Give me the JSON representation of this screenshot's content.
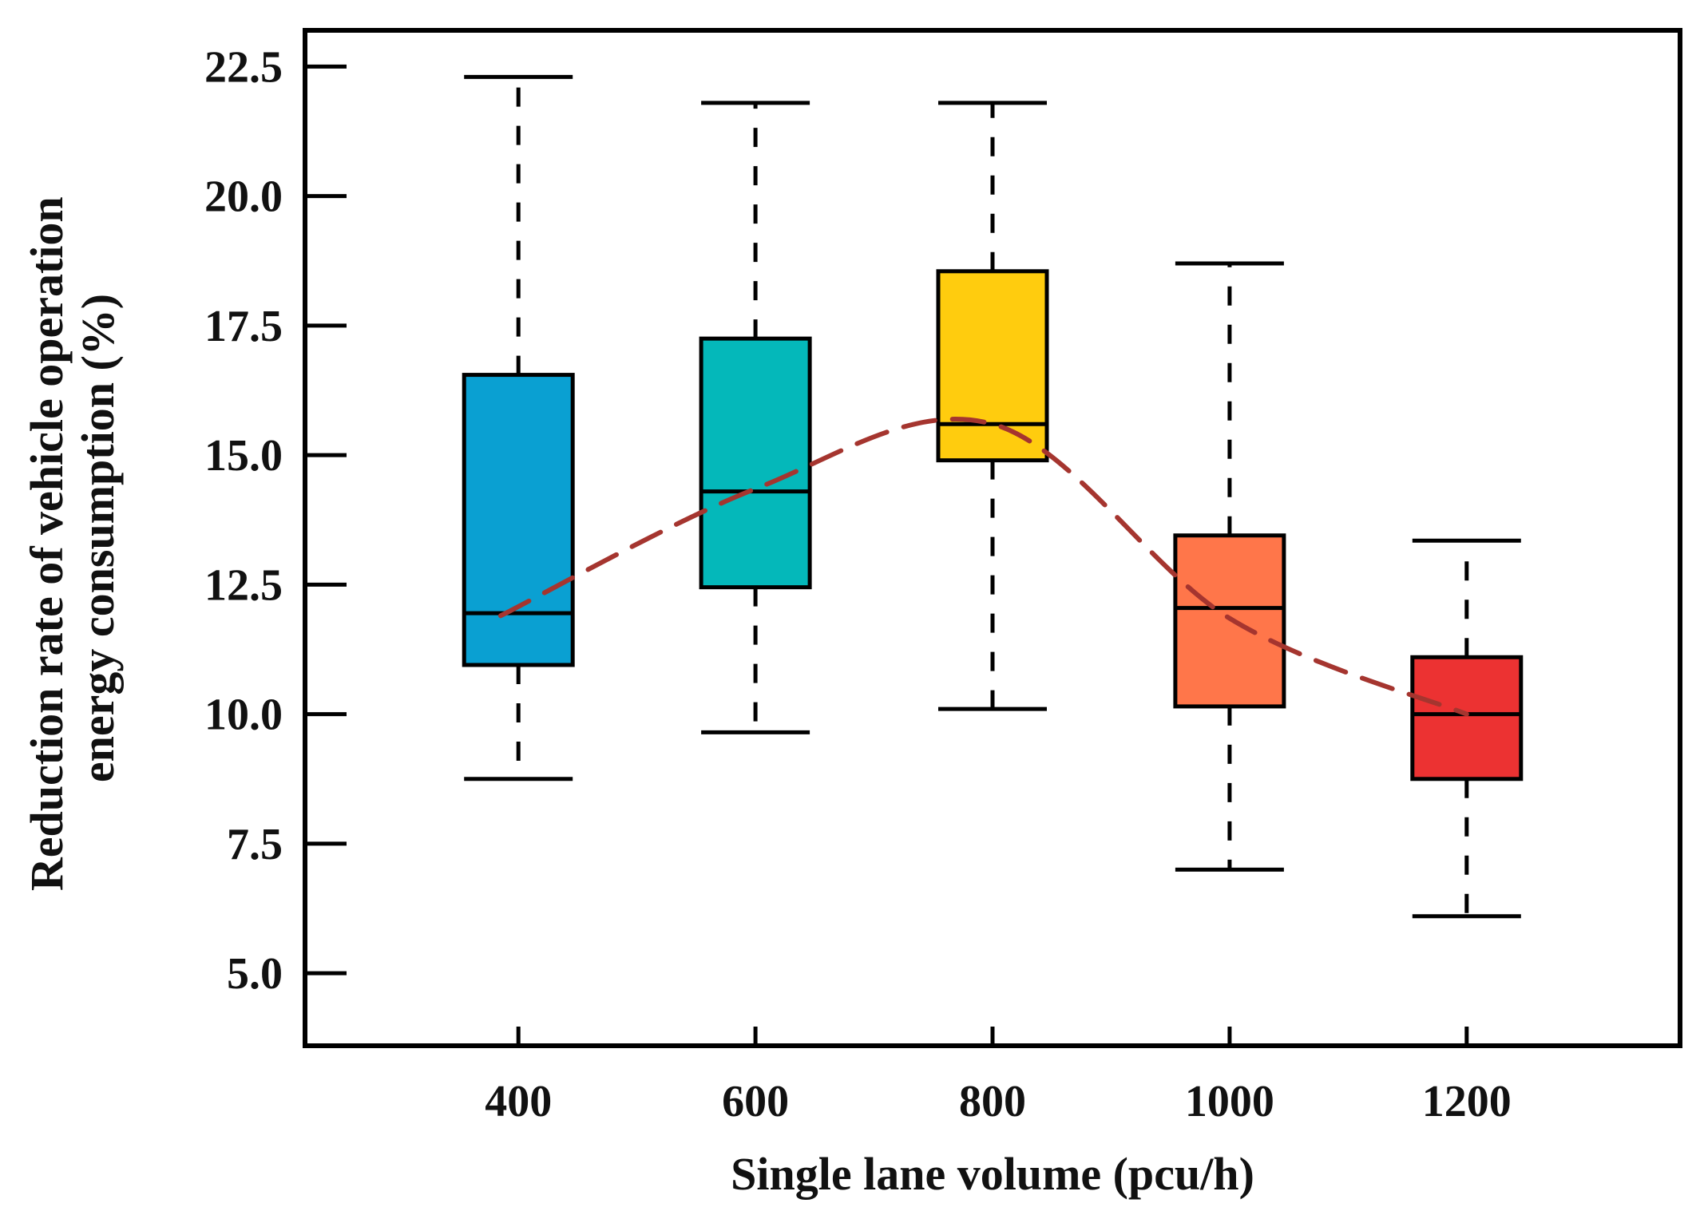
{
  "chart_data": {
    "type": "box",
    "title": "",
    "xlabel": "Single lane volume (pcu/h)",
    "ylabel_lines": [
      "Reduction rate of vehicle operation",
      "energy consumption (%)"
    ],
    "x_range": [
      220,
      1380
    ],
    "ylim": [
      3.6,
      23.2
    ],
    "yticks": [
      5.0,
      7.5,
      10.0,
      12.5,
      15.0,
      17.5,
      20.0,
      22.5
    ],
    "ytick_labels": [
      "5.0",
      "7.5",
      "10.0",
      "12.5",
      "15.0",
      "17.5",
      "20.0",
      "22.5"
    ],
    "xticks": [
      400,
      600,
      800,
      1000,
      1200
    ],
    "xtick_labels": [
      "400",
      "600",
      "800",
      "1000",
      "1200"
    ],
    "boxes": [
      {
        "x": 400,
        "min": 8.75,
        "q1": 10.95,
        "median": 11.95,
        "q3": 16.55,
        "max": 22.3,
        "color": "#0AA0D2"
      },
      {
        "x": 600,
        "min": 9.65,
        "q1": 12.45,
        "median": 14.3,
        "q3": 17.25,
        "max": 21.8,
        "color": "#04B8BA"
      },
      {
        "x": 800,
        "min": 10.1,
        "q1": 14.9,
        "median": 15.6,
        "q3": 18.55,
        "max": 21.8,
        "color": "#FFCC0E"
      },
      {
        "x": 1000,
        "min": 7.0,
        "q1": 10.15,
        "median": 12.05,
        "q3": 13.45,
        "max": 18.7,
        "color": "#FF764A"
      },
      {
        "x": 1200,
        "min": 6.1,
        "q1": 8.75,
        "median": 10.0,
        "q3": 11.1,
        "max": 13.35,
        "color": "#EC3232"
      }
    ],
    "trend": {
      "color": "#A5352F",
      "style": "dashed",
      "points": [
        [
          385,
          11.9
        ],
        [
          600,
          14.35
        ],
        [
          800,
          15.6
        ],
        [
          1000,
          11.85
        ],
        [
          1200,
          10.0
        ]
      ]
    }
  }
}
